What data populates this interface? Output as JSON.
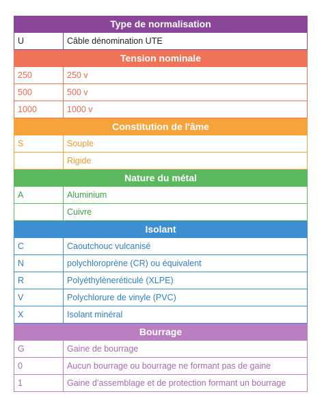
{
  "sections": [
    {
      "title": "Type de normalisation",
      "header_color": "#8a479a",
      "text_color": "#222222",
      "border_color": "#8a479a",
      "rows": [
        {
          "code": "U",
          "desc": "Câble dénomination UTE"
        }
      ]
    },
    {
      "title": "Tension nominale",
      "header_color": "#ef7358",
      "text_color": "#ea6b50",
      "border_color": "#ef7358",
      "rows": [
        {
          "code": "250",
          "desc": "250 v"
        },
        {
          "code": "500",
          "desc": "500 v"
        },
        {
          "code": "1000",
          "desc": "1000 v"
        }
      ]
    },
    {
      "title": "Constitution de l'âme",
      "header_color": "#f6a33c",
      "text_color": "#ef9a30",
      "border_color": "#f6a33c",
      "rows": [
        {
          "code": "S",
          "desc": "Souple"
        },
        {
          "code": "",
          "desc": "Rigide"
        }
      ]
    },
    {
      "title": "Nature du métal",
      "header_color": "#5cb85f",
      "text_color": "#3f9e43",
      "border_color": "#5cb85f",
      "rows": [
        {
          "code": "A",
          "desc": "Aluminium"
        },
        {
          "code": "",
          "desc": "Cuivre"
        }
      ]
    },
    {
      "title": "Isolant",
      "header_color": "#3d8fd1",
      "text_color": "#2f7fc2",
      "border_color": "#3d8fd1",
      "rows": [
        {
          "code": "C",
          "desc": "Caoutchouc vulcanisé"
        },
        {
          "code": "N",
          "desc": "polychloroprène (CR) ou équivalent"
        },
        {
          "code": "R",
          "desc": "Polyéthylèneréticulé (XLPE)"
        },
        {
          "code": "V",
          "desc": "Polychlorure de vinyle (PVC)"
        },
        {
          "code": "X",
          "desc": "Isolant minéral"
        }
      ]
    },
    {
      "title": "Bourrage",
      "header_color": "#b97fc0",
      "text_color": "#a86bb0",
      "border_color": "#b97fc0",
      "rows": [
        {
          "code": "G",
          "desc": "Gaine de bourrage"
        },
        {
          "code": "0",
          "desc": "Aucun bourrage ou bourrage ne formant pas de gaine"
        },
        {
          "code": "1",
          "desc": "Gaine d’assemblage et de protection formant un bourrage"
        }
      ]
    }
  ]
}
